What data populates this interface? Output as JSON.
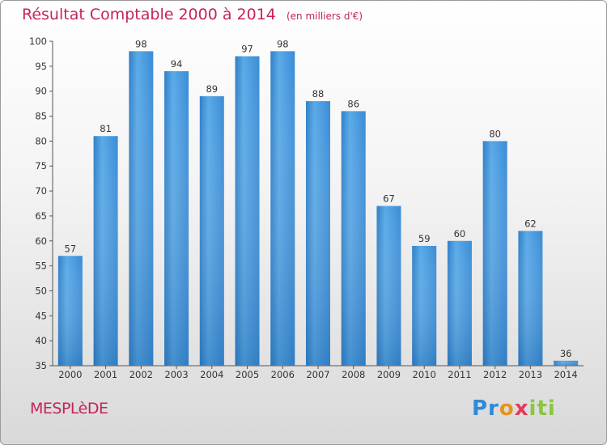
{
  "chart_data": {
    "type": "bar",
    "title": "Résultat Comptable 2000 à 2014",
    "unit": "(en milliers d'€)",
    "categories": [
      "2000",
      "2001",
      "2002",
      "2003",
      "2004",
      "2005",
      "2006",
      "2007",
      "2008",
      "2009",
      "2010",
      "2011",
      "2012",
      "2013",
      "2014"
    ],
    "values": [
      57,
      81,
      98,
      94,
      89,
      97,
      98,
      88,
      86,
      67,
      59,
      60,
      80,
      62,
      36
    ],
    "ylim": [
      35,
      100
    ],
    "yticks": [
      35,
      40,
      45,
      50,
      55,
      60,
      65,
      70,
      75,
      80,
      85,
      90,
      95,
      100
    ],
    "bar_color": "#3c8fd8",
    "grid": false
  },
  "commune": "MESPLèDE",
  "logo": {
    "p1": "Pr",
    "p2": "o",
    "p3": "x",
    "p4": "iti"
  }
}
